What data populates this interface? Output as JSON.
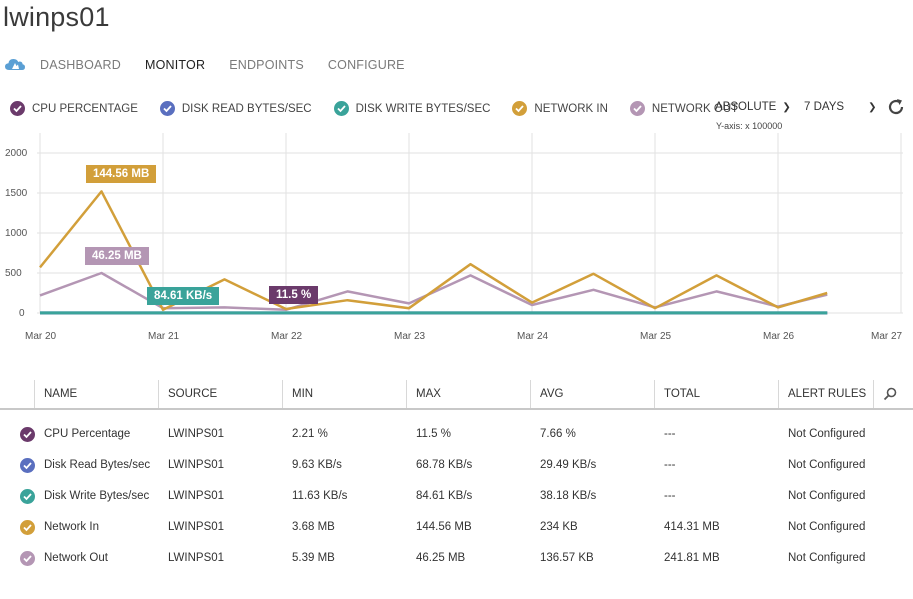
{
  "title": "lwinps01",
  "nav": {
    "tabs": [
      "DASHBOARD",
      "MONITOR",
      "ENDPOINTS",
      "CONFIGURE"
    ],
    "active": "MONITOR"
  },
  "legend": [
    {
      "label": "CPU PERCENTAGE",
      "color": "#6b3a6b"
    },
    {
      "label": "DISK READ BYTES/SEC",
      "color": "#5a6fbf"
    },
    {
      "label": "DISK WRITE BYTES/SEC",
      "color": "#3aa39a"
    },
    {
      "label": "NETWORK IN",
      "color": "#d29f3a"
    },
    {
      "label": "NETWORK OUT",
      "color": "#b496b4"
    }
  ],
  "controls": {
    "scale": "ABSOLUTE",
    "range": "7 DAYS",
    "yaxis_note": "Y-axis: x 100000"
  },
  "tooltips": {
    "network_in": "144.56 MB",
    "network_out": "46.25 MB",
    "disk_write": "84.61 KB/s",
    "cpu": "11.5 %"
  },
  "chart_data": {
    "type": "line",
    "x": [
      "Mar 20",
      "Mar 20.5",
      "Mar 21",
      "Mar 21.5",
      "Mar 22",
      "Mar 22.5",
      "Mar 23",
      "Mar 23.5",
      "Mar 24",
      "Mar 24.5",
      "Mar 25",
      "Mar 25.5",
      "Mar 26",
      "Mar 26.4"
    ],
    "xticks": [
      "Mar 20",
      "Mar 21",
      "Mar 22",
      "Mar 23",
      "Mar 24",
      "Mar 25",
      "Mar 26",
      "Mar 27"
    ],
    "yticks": [
      0,
      500,
      1000,
      1500,
      2000
    ],
    "ylim": [
      0,
      2000
    ],
    "series": [
      {
        "name": "Network In",
        "color": "#d29f3a",
        "values": [
          570,
          1520,
          40,
          420,
          50,
          160,
          60,
          610,
          130,
          490,
          60,
          470,
          70,
          250
        ]
      },
      {
        "name": "Network Out",
        "color": "#b496b4",
        "values": [
          220,
          500,
          60,
          70,
          40,
          270,
          120,
          470,
          100,
          290,
          70,
          270,
          80,
          230
        ]
      },
      {
        "name": "CPU Percentage",
        "color": "#6b3a6b",
        "values": [
          0,
          0,
          0,
          0,
          0,
          0,
          0,
          0,
          0,
          0,
          0,
          0,
          0,
          0
        ]
      },
      {
        "name": "Disk Read Bytes/sec",
        "color": "#5a6fbf",
        "values": [
          1,
          1,
          1,
          1,
          1,
          1,
          1,
          1,
          1,
          1,
          1,
          1,
          1,
          1
        ]
      },
      {
        "name": "Disk Write Bytes/sec",
        "color": "#3aa39a",
        "values": [
          1,
          1,
          1,
          1,
          1,
          1,
          1,
          1,
          1,
          1,
          1,
          1,
          1,
          1
        ]
      }
    ]
  },
  "table": {
    "headers": [
      "NAME",
      "SOURCE",
      "MIN",
      "MAX",
      "AVG",
      "TOTAL",
      "ALERT RULES"
    ],
    "rows": [
      {
        "name": "CPU Percentage",
        "source": "LWINPS01",
        "min": "2.21 %",
        "max": "11.5 %",
        "avg": "7.66 %",
        "total": "---",
        "alert": "Not Configured",
        "color": "#6b3a6b"
      },
      {
        "name": "Disk Read Bytes/sec",
        "source": "LWINPS01",
        "min": "9.63 KB/s",
        "max": "68.78 KB/s",
        "avg": "29.49 KB/s",
        "total": "---",
        "alert": "Not Configured",
        "color": "#5a6fbf"
      },
      {
        "name": "Disk Write Bytes/sec",
        "source": "LWINPS01",
        "min": "11.63 KB/s",
        "max": "84.61 KB/s",
        "avg": "38.18 KB/s",
        "total": "---",
        "alert": "Not Configured",
        "color": "#3aa39a"
      },
      {
        "name": "Network In",
        "source": "LWINPS01",
        "min": "3.68 MB",
        "max": "144.56 MB",
        "avg": "234 KB",
        "total": "414.31 MB",
        "alert": "Not Configured",
        "color": "#d29f3a"
      },
      {
        "name": "Network Out",
        "source": "LWINPS01",
        "min": "5.39 MB",
        "max": "46.25 MB",
        "avg": "136.57 KB",
        "total": "241.81 MB",
        "alert": "Not Configured",
        "color": "#b496b4"
      }
    ]
  }
}
